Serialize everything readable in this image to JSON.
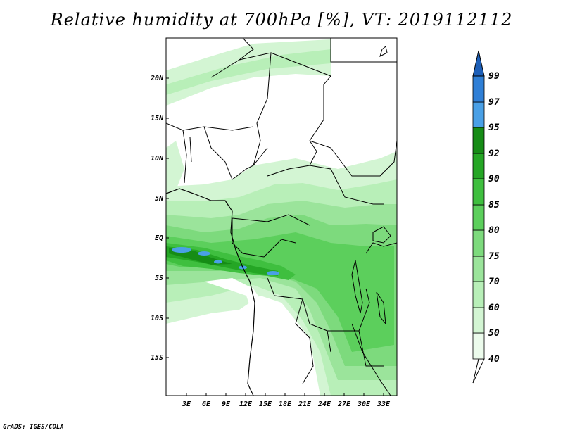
{
  "title": "Relative humidity at 700hPa [%], VT: 2019112112",
  "credit": "GrADS: IGES/COLA",
  "map": {
    "region": "Central Africa",
    "lat_labels": [
      "20N",
      "15N",
      "10N",
      "5N",
      "EQ",
      "5S",
      "10S",
      "15S"
    ],
    "lon_labels": [
      "3E",
      "6E",
      "9E",
      "12E",
      "15E",
      "18E",
      "21E",
      "24E",
      "27E",
      "30E",
      "33E"
    ]
  },
  "colorbar": {
    "labels": [
      "40",
      "50",
      "60",
      "70",
      "75",
      "80",
      "85",
      "90",
      "92",
      "95",
      "97",
      "99"
    ],
    "colors": [
      "#ecfbec",
      "#d3f5d3",
      "#b8efb8",
      "#9be49b",
      "#7dda7d",
      "#5ccf5c",
      "#3fbf3f",
      "#25a625",
      "#168c16",
      "#1a7f1a",
      "#4aa0e6",
      "#2f7fd6",
      "#1d5fb8"
    ]
  }
}
